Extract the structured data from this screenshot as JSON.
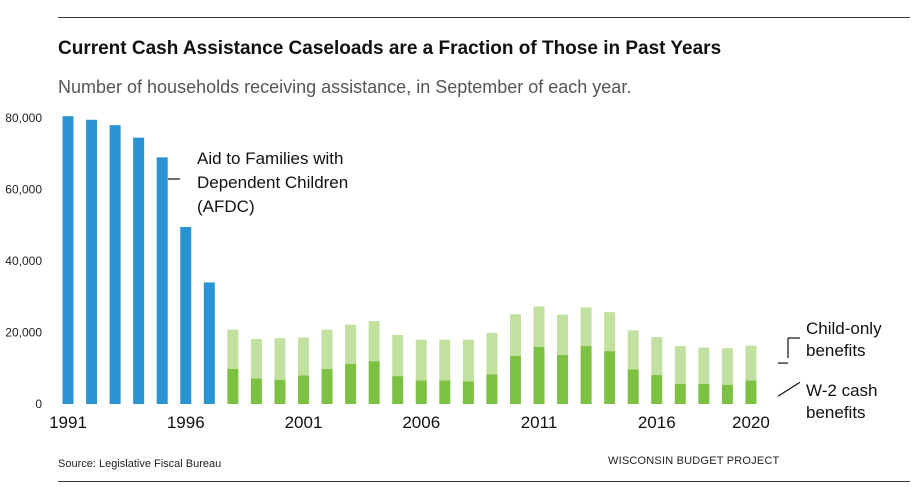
{
  "header": {
    "title": "Current Cash Assistance Caseloads are a Fraction of Those in Past Years",
    "subtitle": "Number of households receiving assistance, in September of each year."
  },
  "footer": {
    "source": "Source: Legislative Fiscal Bureau",
    "brand": "WISCONSIN BUDGET PROJECT"
  },
  "colors": {
    "afdc": "#2a93d1",
    "w2_cash": "#7dc142",
    "child_only": "#c2e0a0"
  },
  "chart_data": {
    "type": "bar",
    "stacked": true,
    "ylim": [
      0,
      80000
    ],
    "yticks": [
      0,
      20000,
      40000,
      60000,
      80000
    ],
    "ytick_labels": [
      "0",
      "20,000",
      "40,000",
      "60,000",
      "80,000"
    ],
    "xtick_labels": [
      "1991",
      "1996",
      "2001",
      "2006",
      "2011",
      "2016",
      "2020"
    ],
    "xtick_years": [
      1991,
      1996,
      2001,
      2006,
      2011,
      2016,
      2020
    ],
    "categories": [
      1991,
      1992,
      1993,
      1994,
      1995,
      1996,
      1997,
      1998,
      1999,
      2000,
      2001,
      2002,
      2003,
      2004,
      2005,
      2006,
      2007,
      2008,
      2009,
      2010,
      2011,
      2012,
      2013,
      2014,
      2015,
      2016,
      2017,
      2018,
      2019,
      2020
    ],
    "series": [
      {
        "name": "Aid to Families with Dependent Children (AFDC)",
        "label_lines": [
          "Aid to Families with",
          "Dependent Children",
          "(AFDC)"
        ],
        "values": [
          80500,
          79500,
          78000,
          74500,
          69000,
          49500,
          34000,
          0,
          0,
          0,
          0,
          0,
          0,
          0,
          0,
          0,
          0,
          0,
          0,
          0,
          0,
          0,
          0,
          0,
          0,
          0,
          0,
          0,
          0,
          0
        ]
      },
      {
        "name": "W-2 cash benefits",
        "label_lines": [
          "W-2 cash",
          "benefits"
        ],
        "values": [
          0,
          0,
          0,
          0,
          0,
          0,
          0,
          9800,
          7200,
          6800,
          8000,
          9800,
          11200,
          12000,
          7800,
          6600,
          6600,
          6300,
          8300,
          13500,
          16000,
          13700,
          16200,
          14800,
          9700,
          8100,
          5600,
          5600,
          5400,
          6600
        ]
      },
      {
        "name": "Child-only benefits",
        "label_lines": [
          "Child-only",
          "benefits"
        ],
        "values": [
          0,
          0,
          0,
          0,
          0,
          0,
          0,
          11000,
          11000,
          11600,
          10600,
          11000,
          11000,
          11200,
          11500,
          11400,
          11400,
          11700,
          11600,
          11600,
          11300,
          11300,
          10800,
          10900,
          10900,
          10600,
          10600,
          10200,
          10200,
          9700
        ]
      }
    ]
  }
}
